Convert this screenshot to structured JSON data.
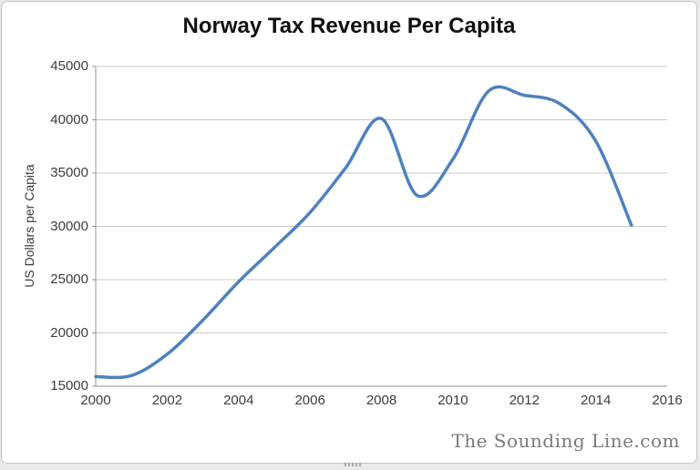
{
  "window": {
    "background": "#ffffff",
    "border_color": "#c4c4c4"
  },
  "chart_data": {
    "type": "line",
    "title": "Norway Tax Revenue Per Capita",
    "ylabel": "US Dollars per Capita",
    "xlabel": "",
    "x": [
      2000,
      2001,
      2002,
      2003,
      2004,
      2005,
      2006,
      2007,
      2008,
      2009,
      2010,
      2011,
      2012,
      2013,
      2014,
      2015
    ],
    "series": [
      {
        "name": "Norway Tax Revenue Per Capita",
        "values": [
          15900,
          16000,
          18000,
          21200,
          24800,
          28000,
          31300,
          35500,
          40100,
          32900,
          36300,
          42700,
          42300,
          41500,
          38000,
          30100
        ]
      }
    ],
    "xlim": [
      2000,
      2016
    ],
    "ylim": [
      15000,
      45000
    ],
    "x_ticks": [
      "2000",
      "2002",
      "2004",
      "2006",
      "2008",
      "2010",
      "2012",
      "2014",
      "2016"
    ],
    "y_ticks": [
      "15000",
      "20000",
      "25000",
      "30000",
      "35000",
      "40000",
      "45000"
    ],
    "grid": "horizontal",
    "legend": "none",
    "smooth": true,
    "line_color": "#4F81BD",
    "grid_color": "#c8c8c8",
    "axis_color": "#969696",
    "tick_text_color": "#3d3d3d"
  },
  "watermark": {
    "text": "The Sounding Line.com",
    "color": "#7a7a7a"
  }
}
